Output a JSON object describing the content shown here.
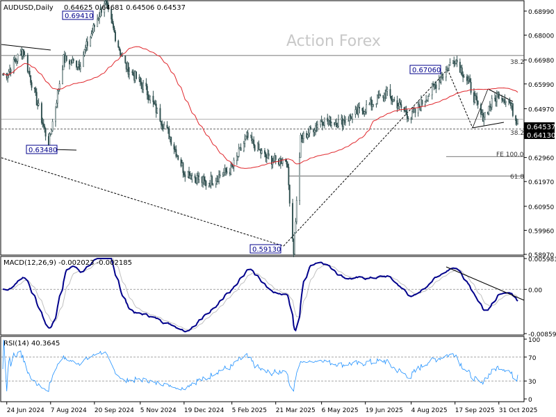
{
  "main": {
    "symbol": "AUDUSD,Daily",
    "ohlc": "0.64625 0.64681 0.64506 0.64537",
    "watermark": "Action Forex",
    "y_ticks": [
      "0.68990",
      "0.68000",
      "0.66980",
      "0.65990",
      "0.64970",
      "0.63980",
      "0.62960",
      "0.61970",
      "0.60950",
      "0.59960",
      "0.58970"
    ],
    "current_price": "0.64537",
    "support_price": "0.64130",
    "fib_labels": {
      "fib382_top": "38.2",
      "fib382_mid": "38.2",
      "fe100": "FE 100.0",
      "fib618": "61.8"
    },
    "price_callouts": {
      "high": "0.69410",
      "swing_high": "0.67060",
      "left_low": "0.63480",
      "low": "0.59130"
    }
  },
  "macd": {
    "label": "MACD(12,26,9) -0.002023 -0.002185",
    "y_ticks": [
      "0.005981",
      "0.00",
      "-0.00859"
    ]
  },
  "rsi": {
    "label": "RSI(14) 40.3645",
    "y_ticks": [
      "100",
      "70",
      "30",
      "0"
    ]
  },
  "x_axis": {
    "labels": [
      "24 Jun 2024",
      "7 Aug 2024",
      "20 Sep 2024",
      "5 Nov 2024",
      "19 Dec 2024",
      "5 Feb 2025",
      "21 Mar 2025",
      "6 May 2025",
      "19 Jun 2025",
      "4 Aug 2025",
      "17 Sep 2025",
      "31 Oct 2025"
    ]
  },
  "colors": {
    "candle": "#2f4f4f",
    "ma": "#e0262b",
    "macd_line": "#00008b",
    "macd_signal": "#c0c0c0",
    "rsi_line": "#1e90ff",
    "fib_line": "#4a4a4a",
    "callout_text": "#00008b"
  },
  "chart_data": {
    "type": "candlestick",
    "anchors": [
      {
        "date": "2024-06-24",
        "close": 0.664
      },
      {
        "date": "2024-07-10",
        "close": 0.674
      },
      {
        "date": "2024-08-05",
        "close": 0.6348
      },
      {
        "date": "2024-08-20",
        "close": 0.67
      },
      {
        "date": "2024-09-05",
        "close": 0.668
      },
      {
        "date": "2024-09-30",
        "close": 0.6941
      },
      {
        "date": "2024-10-20",
        "close": 0.668
      },
      {
        "date": "2024-11-10",
        "close": 0.658
      },
      {
        "date": "2024-12-05",
        "close": 0.638
      },
      {
        "date": "2024-12-19",
        "close": 0.624
      },
      {
        "date": "2025-01-10",
        "close": 0.619
      },
      {
        "date": "2025-02-05",
        "close": 0.625
      },
      {
        "date": "2025-02-20",
        "close": 0.638
      },
      {
        "date": "2025-03-10",
        "close": 0.63
      },
      {
        "date": "2025-03-21",
        "close": 0.628
      },
      {
        "date": "2025-04-01",
        "close": 0.629
      },
      {
        "date": "2025-04-08",
        "close": 0.5913
      },
      {
        "date": "2025-04-15",
        "close": 0.637
      },
      {
        "date": "2025-05-06",
        "close": 0.645
      },
      {
        "date": "2025-05-25",
        "close": 0.644
      },
      {
        "date": "2025-06-19",
        "close": 0.65
      },
      {
        "date": "2025-07-10",
        "close": 0.656
      },
      {
        "date": "2025-08-04",
        "close": 0.646
      },
      {
        "date": "2025-09-17",
        "close": 0.6706
      },
      {
        "date": "2025-10-01",
        "close": 0.66
      },
      {
        "date": "2025-10-14",
        "close": 0.646
      },
      {
        "date": "2025-10-31",
        "close": 0.656
      },
      {
        "date": "2025-11-10",
        "close": 0.653
      },
      {
        "date": "2025-11-17",
        "close": 0.6454
      }
    ],
    "close": 0.64537,
    "key_levels": [
      {
        "label": "38.2",
        "price": 0.6716
      },
      {
        "label": "current",
        "price": 0.64537
      },
      {
        "label": "38.2",
        "price": 0.6413
      },
      {
        "label": "FE 100.0",
        "price": 0.63
      },
      {
        "label": "61.8",
        "price": 0.622
      }
    ],
    "moving_average": "red line",
    "macd": {
      "params": "12,26,9",
      "macd": -0.002023,
      "signal": -0.002185,
      "ylim": [
        -0.00859,
        0.005981
      ]
    },
    "rsi": {
      "period": 14,
      "value": 40.3645,
      "levels": [
        70,
        30
      ],
      "ylim": [
        0,
        100
      ]
    },
    "ylim": [
      0.5897,
      0.6939
    ]
  }
}
